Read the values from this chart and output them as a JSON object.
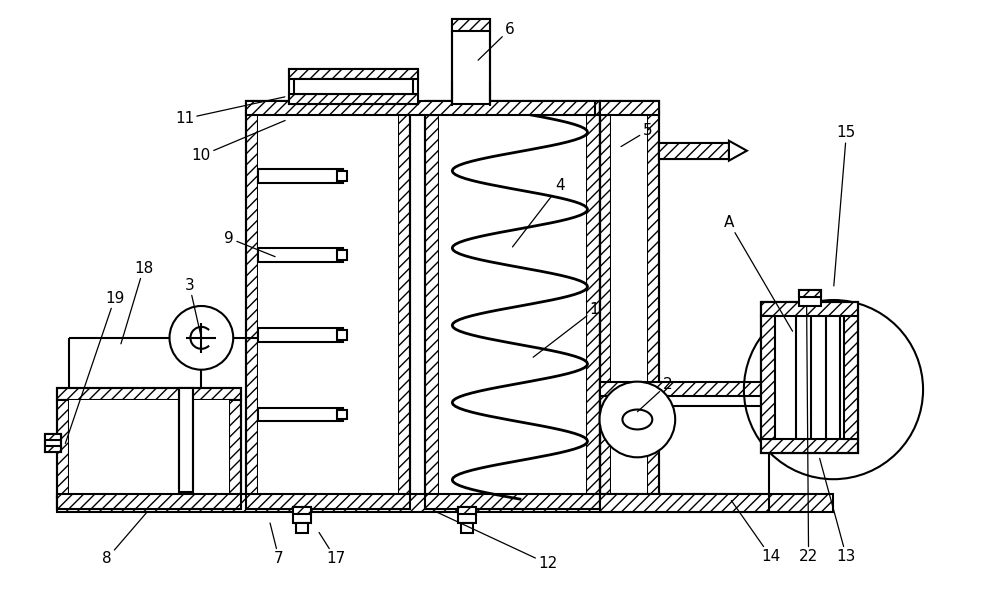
{
  "bg_color": "#ffffff",
  "line_color": "#000000",
  "fig_width": 10.0,
  "fig_height": 6.11,
  "annotations": [
    [
      "1",
      595,
      310,
      530,
      360
    ],
    [
      "2",
      668,
      385,
      635,
      415
    ],
    [
      "3",
      188,
      285,
      200,
      338
    ],
    [
      "4",
      560,
      185,
      510,
      250
    ],
    [
      "5",
      648,
      130,
      618,
      148
    ],
    [
      "6",
      510,
      28,
      475,
      62
    ],
    [
      "7",
      278,
      560,
      268,
      520
    ],
    [
      "8",
      105,
      560,
      148,
      510
    ],
    [
      "9",
      228,
      238,
      278,
      258
    ],
    [
      "10",
      200,
      155,
      288,
      118
    ],
    [
      "11",
      183,
      118,
      288,
      95
    ],
    [
      "12",
      548,
      565,
      430,
      510
    ],
    [
      "13",
      848,
      558,
      820,
      455
    ],
    [
      "14",
      772,
      558,
      730,
      498
    ],
    [
      "15",
      848,
      132,
      835,
      290
    ],
    [
      "17",
      335,
      560,
      316,
      530
    ],
    [
      "18",
      142,
      268,
      118,
      348
    ],
    [
      "19",
      113,
      298,
      62,
      448
    ],
    [
      "22",
      810,
      558,
      808,
      302
    ],
    [
      "A",
      730,
      222,
      796,
      335
    ]
  ]
}
